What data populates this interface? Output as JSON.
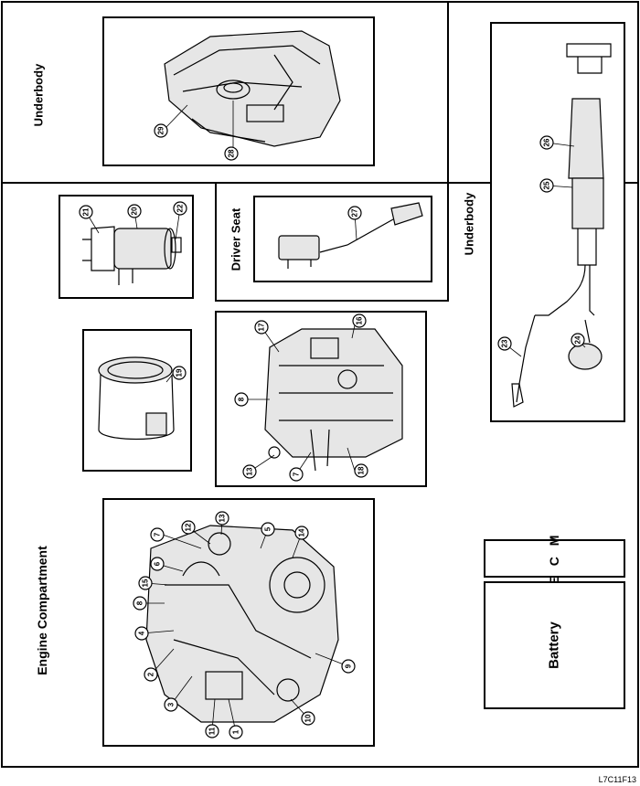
{
  "zones": {
    "underbody_top": "Underbody",
    "underbody_right": "Underbody",
    "driver_seat": "Driver Seat",
    "engine_compartment": "Engine Compartment",
    "ecm": "E C M",
    "battery": "Battery"
  },
  "figure_id": "L7C11F13",
  "callouts": [
    "1",
    "2",
    "3",
    "4",
    "5",
    "6",
    "7",
    "8",
    "9",
    "10",
    "11",
    "12",
    "13",
    "14",
    "15",
    "16",
    "17",
    "18",
    "19",
    "20",
    "21",
    "22",
    "23",
    "24",
    "25",
    "26",
    "27",
    "28",
    "29"
  ]
}
